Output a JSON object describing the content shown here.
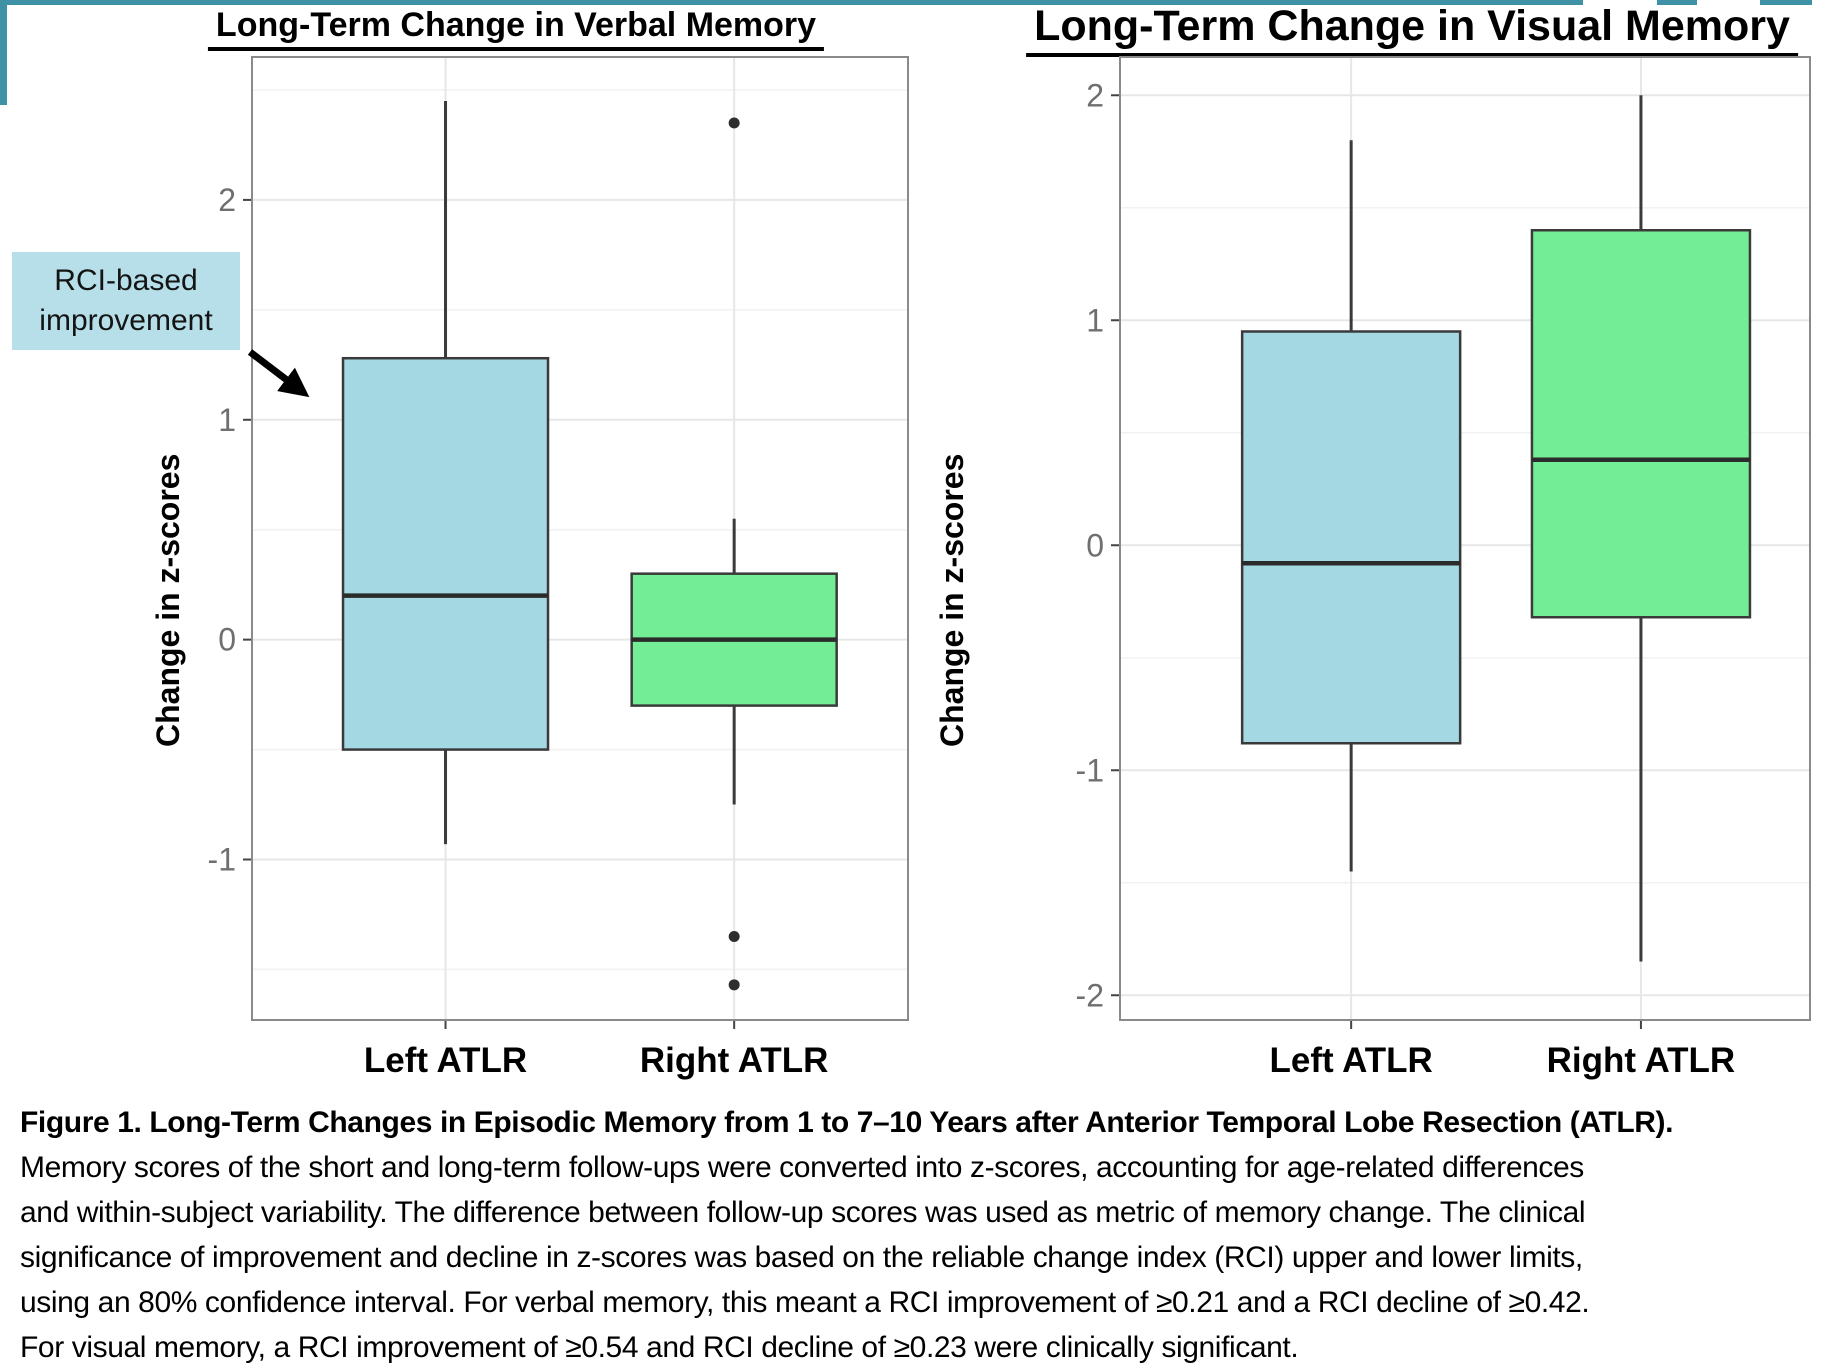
{
  "page": {
    "type": "figure-slide",
    "accent_teal": "#3f91a6"
  },
  "chart_data": [
    {
      "type": "boxplot",
      "title": "Long-Term Change in Verbal Memory",
      "y_axis_label": "Change in z-scores",
      "categories": [
        "Left ATLR",
        "Right ATLR"
      ],
      "yticks": [
        -1,
        0,
        1,
        2
      ],
      "ylim": [
        -1.73,
        2.65
      ],
      "grid": "major-and-minor",
      "series": [
        {
          "name": "Left ATLR",
          "color": "#a4d8e3",
          "whisker_low": -0.93,
          "q1": -0.5,
          "median": 0.2,
          "q3": 1.28,
          "whisker_high": 2.45,
          "outliers": []
        },
        {
          "name": "Right ATLR",
          "color": "#74ee96",
          "whisker_low": -0.75,
          "q1": -0.3,
          "median": 0.0,
          "q3": 0.3,
          "whisker_high": 0.55,
          "outliers": [
            2.35,
            -1.35,
            -1.57
          ]
        }
      ]
    },
    {
      "type": "boxplot",
      "title": "Long-Term Change in Visual Memory",
      "y_axis_label": "Change in z-scores",
      "categories": [
        "Left ATLR",
        "Right ATLR"
      ],
      "yticks": [
        -2,
        -1,
        0,
        1,
        2
      ],
      "ylim": [
        -2.11,
        2.17
      ],
      "grid": "major-and-minor",
      "series": [
        {
          "name": "Left ATLR",
          "color": "#a4d8e3",
          "whisker_low": -1.45,
          "q1": -0.88,
          "median": -0.08,
          "q3": 0.95,
          "whisker_high": 1.8,
          "outliers": []
        },
        {
          "name": "Right ATLR",
          "color": "#74ee96",
          "whisker_low": -1.85,
          "q1": -0.32,
          "median": 0.38,
          "q3": 1.4,
          "whisker_high": 2.0,
          "outliers": []
        }
      ]
    }
  ],
  "annotation": {
    "line1": "RCI-based",
    "line2": "improvement",
    "fill": "#b7dfe9"
  },
  "caption": {
    "lines": [
      "Figure 1. Long-Term Changes in Episodic Memory from 1 to 7–10 Years after Anterior Temporal Lobe Resection (ATLR).",
      "Memory scores of the short and long-term follow-ups were converted into z-scores, accounting for age-related differences",
      "and within-subject variability. The difference between follow-up scores was used as metric of memory change. The clinical",
      "significance of improvement and decline in z-scores was based on the reliable change index (RCI) upper and lower limits,",
      "using an 80% confidence interval. For verbal memory, this meant a RCI improvement of ≥0.21 and a RCI decline of ≥0.42.",
      "For visual memory, a RCI improvement of ≥0.54 and RCI decline of ≥0.23 were clinically significant."
    ]
  },
  "colors": {
    "box_blue": "#a4d8e3",
    "box_green": "#74ee96",
    "box_stroke": "#3a3a3a",
    "median_stroke": "#2b2b2b",
    "panel_border": "#8a8a8a",
    "grid_major": "#e7e7e7",
    "grid_minor": "#f2f2f2",
    "tick_label": "#6f6f6f",
    "teal": "#3f91a6",
    "annotation_fill": "#b7dfe9"
  }
}
